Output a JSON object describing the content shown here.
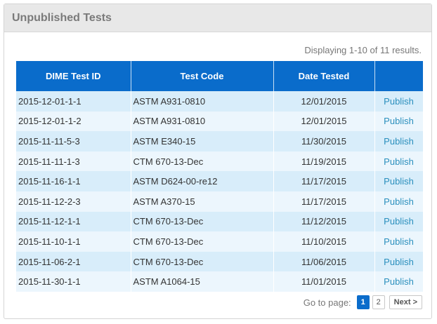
{
  "panel": {
    "title": "Unpublished Tests"
  },
  "summary": "Displaying 1-10 of 11 results.",
  "table": {
    "headers": [
      "DIME Test ID",
      "Test Code",
      "Date Tested",
      ""
    ],
    "rows": [
      [
        "2015-12-01-1-1",
        "ASTM A931-0810",
        "12/01/2015",
        "Publish"
      ],
      [
        "2015-12-01-1-2",
        "ASTM A931-0810",
        "12/01/2015",
        "Publish"
      ],
      [
        "2015-11-11-5-3",
        "ASTM E340-15",
        "11/30/2015",
        "Publish"
      ],
      [
        "2015-11-11-1-3",
        "CTM 670-13-Dec",
        "11/19/2015",
        "Publish"
      ],
      [
        "2015-11-16-1-1",
        "ASTM D624-00-re12",
        "11/17/2015",
        "Publish"
      ],
      [
        "2015-11-12-2-3",
        "ASTM A370-15",
        "11/17/2015",
        "Publish"
      ],
      [
        "2015-11-12-1-1",
        "CTM 670-13-Dec",
        "11/12/2015",
        "Publish"
      ],
      [
        "2015-11-10-1-1",
        "CTM 670-13-Dec",
        "11/10/2015",
        "Publish"
      ],
      [
        "2015-11-06-2-1",
        "CTM 670-13-Dec",
        "11/06/2015",
        "Publish"
      ],
      [
        "2015-11-30-1-1",
        "ASTM A1064-15",
        "11/01/2015",
        "Publish"
      ]
    ]
  },
  "pagination": {
    "label": "Go to page:",
    "pages": [
      "1",
      "2"
    ],
    "next": "Next >"
  }
}
